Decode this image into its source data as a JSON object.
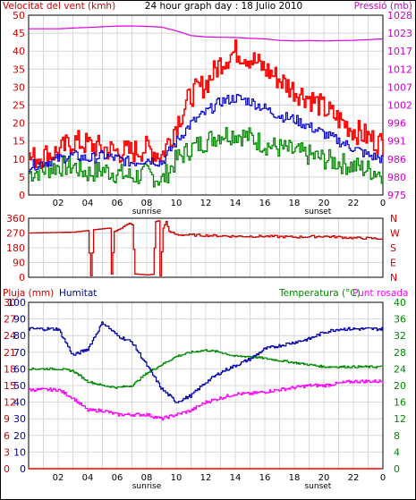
{
  "window_title": "24 hour graph day : 18 Julio 2010",
  "colors": {
    "wind_avg": "#0000cc",
    "wind_gust": "#ff0000",
    "wind_calm": "#008800",
    "pressure": "#dd00dd",
    "wind_dir": "#cc0000",
    "humidity": "#0000aa",
    "temperature": "#008800",
    "dewpoint": "#ff00ff",
    "rain": "#ff0000",
    "grid": "#d8d8d8",
    "axis_red": "#cc0000",
    "axis_magenta": "#cc00cc",
    "axis_green": "#008800",
    "axis_navy": "#000099"
  },
  "x_axis": {
    "hour_labels": [
      "02",
      "04",
      "06",
      "08",
      "10",
      "12",
      "14",
      "16",
      "18",
      "20",
      "22",
      "0"
    ],
    "sunrise_label": "sunrise",
    "sunset_label": "sunset"
  },
  "chart_data": [
    {
      "type": "line",
      "title": "24 hour graph day : 18 Julio 2010",
      "ylabel_left": "Velocitat del vent (kmh)",
      "ylabel_right": "Pressió (mb)",
      "y_left_ticks": [
        "0",
        "5",
        "10",
        "15",
        "20",
        "25",
        "30",
        "35",
        "40",
        "45",
        "50"
      ],
      "y_right_ticks": [
        "975",
        "980",
        "986",
        "991",
        "996",
        "1002",
        "1007",
        "1012",
        "1017",
        "1023",
        "1028"
      ],
      "ylim_left": [
        0,
        50
      ],
      "ylim_right": [
        975,
        1028
      ],
      "x_hours": [
        0,
        2,
        3,
        4,
        5,
        6,
        7,
        8,
        9,
        10,
        11,
        12,
        13,
        14,
        15,
        16,
        17,
        18,
        19,
        20,
        21,
        22,
        23,
        24
      ],
      "series": [
        {
          "key": "gust",
          "values": [
            10,
            12,
            15,
            14,
            13,
            12,
            12,
            13,
            11,
            20,
            28,
            31,
            37,
            40,
            38,
            35,
            32,
            29,
            27,
            24,
            21,
            18,
            16,
            14
          ]
        },
        {
          "key": "average",
          "values": [
            8,
            10,
            11,
            10,
            11,
            10,
            9,
            10,
            9,
            15,
            20,
            23,
            26,
            27,
            26,
            24,
            22,
            21,
            19,
            17,
            15,
            13,
            11,
            10
          ]
        },
        {
          "key": "calm",
          "values": [
            6,
            8,
            8,
            6,
            7,
            6,
            5,
            6,
            4,
            10,
            13,
            15,
            17,
            17,
            16,
            14,
            13,
            12,
            11,
            10,
            9,
            8,
            7,
            6
          ]
        },
        {
          "key": "pressure",
          "values": [
            1024,
            1024,
            1024.2,
            1024.4,
            1024.6,
            1024.8,
            1024.8,
            1024.7,
            1024.5,
            1023.4,
            1022,
            1021.6,
            1021.5,
            1021.4,
            1021.2,
            1021,
            1020.6,
            1020.4,
            1020.5,
            1020.4,
            1020.5,
            1020.6,
            1020.8,
            1021
          ]
        }
      ]
    },
    {
      "type": "line",
      "title": "",
      "y_left_ticks": [
        "0",
        "90",
        "180",
        "270",
        "360"
      ],
      "y_right_ticks": [
        "N",
        "E",
        "S",
        "W",
        "N"
      ],
      "ylim": [
        0,
        360
      ],
      "series": [
        {
          "key": "direction",
          "points": [
            [
              0,
              270
            ],
            [
              3,
              275
            ],
            [
              4,
              285
            ],
            [
              4.2,
              10
            ],
            [
              4.4,
              290
            ],
            [
              5.5,
              300
            ],
            [
              5.6,
              20
            ],
            [
              5.8,
              280
            ],
            [
              6.3,
              300
            ],
            [
              6.4,
              310
            ],
            [
              6.8,
              330
            ],
            [
              7,
              320
            ],
            [
              7.2,
              20
            ],
            [
              8,
              15
            ],
            [
              8.4,
              18
            ],
            [
              8.6,
              340
            ],
            [
              8.8,
              345
            ],
            [
              8.9,
              10
            ],
            [
              9.1,
              300
            ],
            [
              9.3,
              340
            ],
            [
              9.5,
              280
            ],
            [
              10,
              260
            ],
            [
              12,
              255
            ],
            [
              14,
              250
            ],
            [
              16,
              250
            ],
            [
              18,
              245
            ],
            [
              20,
              250
            ],
            [
              22,
              240
            ],
            [
              24,
              235
            ]
          ]
        }
      ]
    },
    {
      "type": "line",
      "ylabel_rain": "Pluja (mm)",
      "ylabel_humidity": "Humitat",
      "ylabel_temp": "Temperatura (°C)",
      "ylabel_dew": "Punt rosada",
      "y_rain_ticks": [
        "0",
        "3",
        "6",
        "9",
        "12",
        "15",
        "18",
        "21",
        "24",
        "27",
        "30"
      ],
      "y_humidity_ticks": [
        "0",
        "10",
        "20",
        "30",
        "40",
        "50",
        "60",
        "70",
        "80",
        "90",
        "100"
      ],
      "y_temp_ticks": [
        "0",
        "4",
        "8",
        "12",
        "16",
        "20",
        "24",
        "28",
        "32",
        "36",
        "40"
      ],
      "ylim_humidity": [
        0,
        100
      ],
      "ylim_temp": [
        0,
        40
      ],
      "ylim_rain": [
        0,
        30
      ],
      "x_hours": [
        0,
        1,
        2,
        3,
        4,
        5,
        6,
        7,
        8,
        9,
        10,
        11,
        12,
        13,
        14,
        15,
        16,
        17,
        18,
        19,
        20,
        21,
        22,
        23,
        24
      ],
      "series": [
        {
          "key": "humidity",
          "values": [
            84,
            84,
            84,
            68,
            72,
            88,
            80,
            76,
            62,
            48,
            40,
            44,
            52,
            58,
            62,
            66,
            72,
            74,
            76,
            78,
            82,
            84,
            84,
            84,
            84
          ]
        },
        {
          "key": "temperature",
          "values": [
            24,
            24,
            24,
            23.5,
            21,
            20,
            19.5,
            20,
            23,
            25,
            27,
            28,
            28.5,
            28,
            27,
            27,
            26.5,
            26,
            25.5,
            25,
            24.5,
            24.5,
            24.5,
            24.5,
            24.5
          ]
        },
        {
          "key": "dewpoint",
          "values": [
            19,
            19,
            19,
            17,
            14,
            14,
            13,
            13,
            13,
            12,
            13,
            14,
            16,
            17,
            18,
            18,
            18.5,
            19,
            19.5,
            20,
            20,
            20.5,
            21,
            21,
            21
          ]
        },
        {
          "key": "rain",
          "values": [
            0,
            0,
            0,
            0,
            0,
            0,
            0,
            0,
            0,
            0,
            0,
            0,
            0,
            0,
            0,
            0,
            0,
            0,
            0,
            0,
            0,
            0,
            0,
            0,
            0
          ]
        }
      ]
    }
  ]
}
